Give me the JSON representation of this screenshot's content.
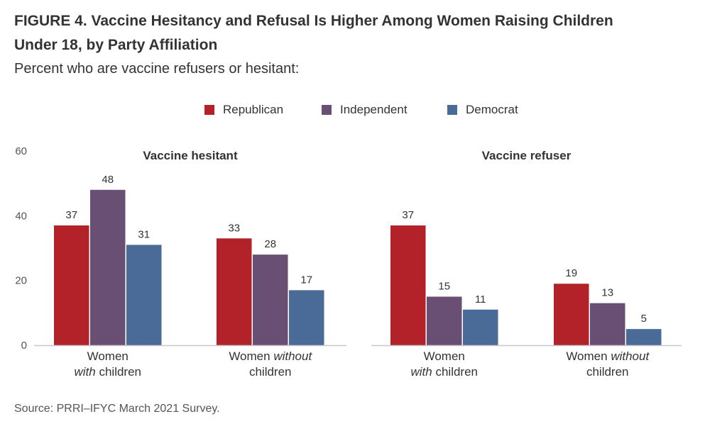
{
  "header": {
    "title_line1": "FIGURE 4.  Vaccine Hesitancy and Refusal Is Higher Among Women Raising Children",
    "title_line2": "Under 18, by Party Affiliation",
    "subtitle": "Percent who are vaccine refusers or hesitant:"
  },
  "legend": [
    {
      "label": "Republican",
      "color": "#B22228"
    },
    {
      "label": "Independent",
      "color": "#6A4F75"
    },
    {
      "label": "Democrat",
      "color": "#4A6B97"
    }
  ],
  "source": "Source: PRRI–IFYC March 2021 Survey.",
  "chart_data": [
    {
      "type": "bar",
      "title": "Vaccine hesitant",
      "categories": [
        {
          "line1": "Women",
          "line2_prefix": "",
          "line2_italic": "with",
          "line2_suffix": " children",
          "italic_first_line": false
        },
        {
          "line1_prefix": "Women ",
          "line1_italic": "without",
          "line2": "children",
          "italic_first_line": true
        }
      ],
      "category_names": [
        "Women with children",
        "Women without children"
      ],
      "series": [
        {
          "name": "Republican",
          "values": [
            37,
            33
          ]
        },
        {
          "name": "Independent",
          "values": [
            48,
            28
          ]
        },
        {
          "name": "Democrat",
          "values": [
            31,
            17
          ]
        }
      ],
      "ylim": [
        0,
        60
      ],
      "yticks": [
        0,
        20,
        40,
        60
      ]
    },
    {
      "type": "bar",
      "title": "Vaccine refuser",
      "categories": [
        {
          "line1": "Women",
          "line2_prefix": "",
          "line2_italic": "with",
          "line2_suffix": " children",
          "italic_first_line": false
        },
        {
          "line1_prefix": "Women ",
          "line1_italic": "without",
          "line2": "children",
          "italic_first_line": true
        }
      ],
      "category_names": [
        "Women with children",
        "Women without children"
      ],
      "series": [
        {
          "name": "Republican",
          "values": [
            37,
            19
          ]
        },
        {
          "name": "Independent",
          "values": [
            15,
            13
          ]
        },
        {
          "name": "Democrat",
          "values": [
            11,
            5
          ]
        }
      ],
      "ylim": [
        0,
        60
      ],
      "yticks": [
        0,
        20,
        40,
        60
      ]
    }
  ]
}
